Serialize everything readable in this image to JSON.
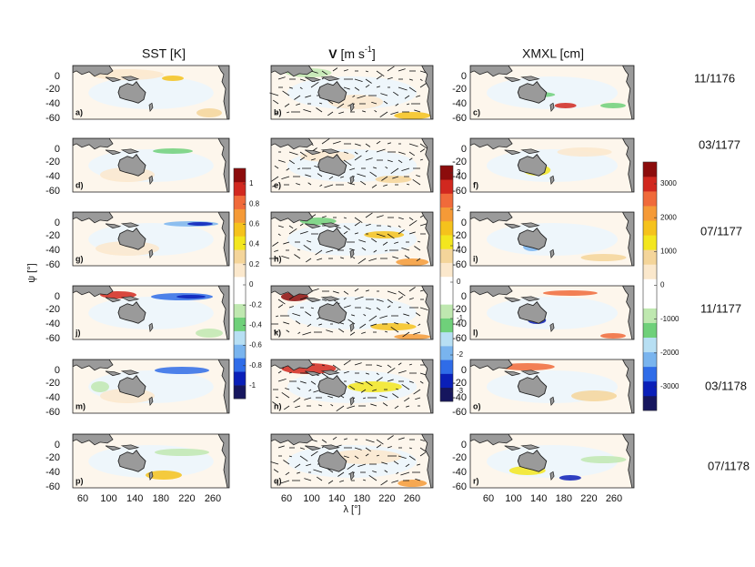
{
  "columns": [
    {
      "title": "SST [K]"
    },
    {
      "symbol": "V",
      "unit": "[m s",
      "exponent": "-1",
      "close": "]"
    },
    {
      "title": "XMXL [cm]"
    }
  ],
  "rows": [
    "11/1176",
    "03/1177",
    "07/1177",
    "11/1177",
    "03/1178",
    "07/1178"
  ],
  "panels": [
    [
      "a)",
      "b)",
      "c)"
    ],
    [
      "d)",
      "e)",
      "f)"
    ],
    [
      "g)",
      "h)",
      "i)"
    ],
    [
      "j)",
      "k)",
      "l)"
    ],
    [
      "m)",
      "n)",
      "o)"
    ],
    [
      "p)",
      "q)",
      "r)"
    ]
  ],
  "y_ticks": [
    0,
    -20,
    -40,
    -60
  ],
  "x_ticks": [
    60,
    100,
    140,
    180,
    220,
    260
  ],
  "y_axis_label": "ψ [°]",
  "x_axis_label": "λ [°]",
  "colorbars": [
    {
      "ticks": [
        1,
        0.8,
        0.6,
        0.4,
        0.2,
        0,
        -0.2,
        -0.4,
        -0.6,
        -0.8,
        -1
      ]
    },
    {
      "ticks": [
        3,
        2,
        1,
        0,
        -1,
        -2,
        -3
      ]
    },
    {
      "ticks": [
        3000,
        2000,
        1000,
        0,
        -1000,
        -2000,
        -3000
      ]
    }
  ]
}
